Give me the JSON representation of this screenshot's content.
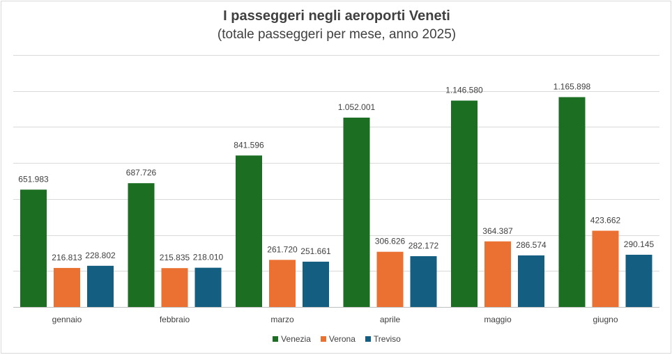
{
  "chart_data": {
    "type": "bar",
    "title": "I passeggeri negli aeroporti Veneti",
    "subtitle": "(totale passeggeri per mese, anno 2025)",
    "categories": [
      "gennaio",
      "febbraio",
      "marzo",
      "aprile",
      "maggio",
      "giugno"
    ],
    "series": [
      {
        "name": "Venezia",
        "color": "#1b6e22",
        "values": [
          651983,
          687726,
          841596,
          1052001,
          1146580,
          1165898
        ],
        "labels": [
          "651.983",
          "687.726",
          "841.596",
          "1.052.001",
          "1.146.580",
          "1.165.898"
        ]
      },
      {
        "name": "Verona",
        "color": "#ea7131",
        "values": [
          216813,
          215835,
          261720,
          306626,
          364387,
          423662
        ],
        "labels": [
          "216.813",
          "215.835",
          "261.720",
          "306.626",
          "364.387",
          "423.662"
        ]
      },
      {
        "name": "Treviso",
        "color": "#145e82",
        "values": [
          228802,
          218010,
          251661,
          282172,
          286574,
          290145
        ],
        "labels": [
          "228.802",
          "218.010",
          "251.661",
          "282.172",
          "286.574",
          "290.145"
        ]
      }
    ],
    "ylim": [
      0,
      1400000
    ],
    "grid_step": 200000,
    "grid": true,
    "y_axis_labels": false,
    "legend_position": "bottom"
  }
}
